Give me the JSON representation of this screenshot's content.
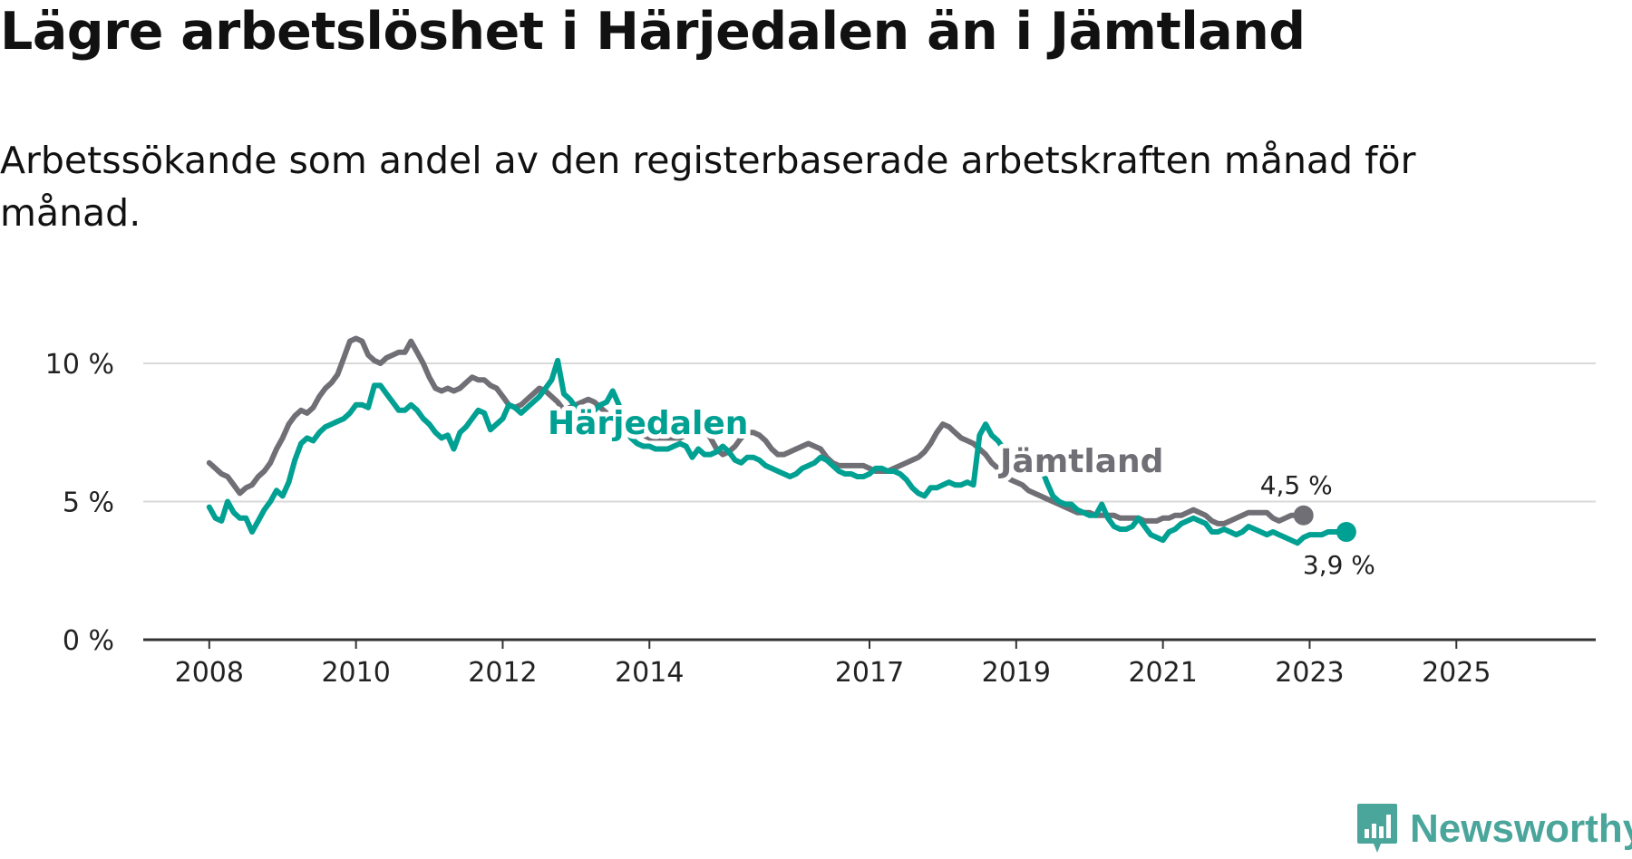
{
  "title": "Lägre arbetslöshet i Härjedalen än i Jämtland",
  "subtitle": "Arbetssökande som andel av den registerbaserade arbetskraften månad för månad.",
  "logo_text": "Newsworthy",
  "colors": {
    "harjedalen": "#00a093",
    "jamtland": "#716f76",
    "grid": "#d9d9d9",
    "axis": "#333333",
    "logo": "#4aa59b"
  },
  "chart_data": {
    "type": "line",
    "x_start": 2008.0,
    "x_step": 0.0833333,
    "xlim": [
      2007.1,
      2026.9
    ],
    "ylim": [
      0,
      10
    ],
    "y_ticks": [
      0,
      5,
      10
    ],
    "y_tick_labels": [
      "0 %",
      "5 %",
      "10 %"
    ],
    "x_ticks": [
      2008,
      2010,
      2012,
      2014,
      2017,
      2019,
      2021,
      2023,
      2025
    ],
    "x_tick_labels": [
      "2008",
      "2010",
      "2012",
      "2014",
      "2017",
      "2019",
      "2021",
      "2023",
      "2025"
    ],
    "series": [
      {
        "name": "Jämtland",
        "label": "Jämtland",
        "end_label": "4,5 %",
        "values": [
          6.4,
          6.2,
          6.0,
          5.9,
          5.6,
          5.3,
          5.5,
          5.6,
          5.9,
          6.1,
          6.4,
          6.9,
          7.3,
          7.8,
          8.1,
          8.3,
          8.2,
          8.4,
          8.8,
          9.1,
          9.3,
          9.6,
          10.2,
          10.8,
          10.9,
          10.8,
          10.3,
          10.1,
          10.0,
          10.2,
          10.3,
          10.4,
          10.4,
          10.8,
          10.4,
          10.0,
          9.5,
          9.1,
          9.0,
          9.1,
          9.0,
          9.1,
          9.3,
          9.5,
          9.4,
          9.4,
          9.2,
          9.1,
          8.8,
          8.5,
          8.4,
          8.5,
          8.7,
          8.9,
          9.1,
          9.0,
          8.8,
          8.6,
          8.3,
          8.4,
          8.5,
          8.6,
          8.7,
          8.6,
          8.4,
          8.2,
          8.0,
          7.8,
          7.6,
          7.5,
          7.4,
          7.4,
          7.3,
          7.3,
          7.3,
          7.3,
          7.3,
          7.3,
          7.4,
          7.6,
          7.7,
          7.6,
          7.3,
          6.9,
          6.7,
          6.8,
          7.0,
          7.3,
          7.5,
          7.5,
          7.4,
          7.2,
          6.9,
          6.7,
          6.7,
          6.8,
          6.9,
          7.0,
          7.1,
          7.0,
          6.9,
          6.6,
          6.4,
          6.3,
          6.3,
          6.3,
          6.3,
          6.3,
          6.2,
          6.1,
          6.1,
          6.1,
          6.2,
          6.3,
          6.4,
          6.5,
          6.6,
          6.8,
          7.1,
          7.5,
          7.8,
          7.7,
          7.5,
          7.3,
          7.2,
          7.1,
          6.9,
          6.7,
          6.4,
          6.2,
          6.0,
          5.8,
          5.7,
          5.6,
          5.4,
          5.3,
          5.2,
          5.1,
          5.0,
          4.9,
          4.8,
          4.7,
          4.6,
          4.6,
          4.6,
          4.5,
          4.5,
          4.5,
          4.5,
          4.4,
          4.4,
          4.4,
          4.4,
          4.3,
          4.3,
          4.3,
          4.4,
          4.4,
          4.5,
          4.5,
          4.6,
          4.7,
          4.6,
          4.5,
          4.3,
          4.2,
          4.2,
          4.3,
          4.4,
          4.5,
          4.6,
          4.6,
          4.6,
          4.6,
          4.4,
          4.3,
          4.4,
          4.5,
          4.5,
          4.5
        ]
      },
      {
        "name": "Härjedalen",
        "label": "Härjedalen",
        "end_label": "3,9 %",
        "values": [
          4.8,
          4.4,
          4.3,
          5.0,
          4.6,
          4.4,
          4.4,
          3.9,
          4.3,
          4.7,
          5.0,
          5.4,
          5.2,
          5.7,
          6.5,
          7.1,
          7.3,
          7.2,
          7.5,
          7.7,
          7.8,
          7.9,
          8.0,
          8.2,
          8.5,
          8.5,
          8.4,
          9.2,
          9.2,
          8.9,
          8.6,
          8.3,
          8.3,
          8.5,
          8.3,
          8.0,
          7.8,
          7.5,
          7.3,
          7.4,
          6.9,
          7.5,
          7.7,
          8.0,
          8.3,
          8.2,
          7.6,
          7.8,
          8.0,
          8.5,
          8.4,
          8.2,
          8.4,
          8.6,
          8.8,
          9.1,
          9.4,
          10.1,
          8.9,
          8.7,
          8.4,
          8.3,
          8.2,
          8.3,
          8.5,
          8.6,
          9.0,
          8.5,
          7.7,
          7.3,
          7.1,
          7.0,
          7.0,
          6.9,
          6.9,
          6.9,
          7.0,
          7.1,
          7.0,
          6.6,
          6.9,
          6.7,
          6.7,
          6.8,
          7.0,
          6.8,
          6.5,
          6.4,
          6.6,
          6.6,
          6.5,
          6.3,
          6.2,
          6.1,
          6.0,
          5.9,
          6.0,
          6.2,
          6.3,
          6.4,
          6.6,
          6.5,
          6.3,
          6.1,
          6.0,
          6.0,
          5.9,
          5.9,
          6.0,
          6.2,
          6.2,
          6.1,
          6.1,
          6.0,
          5.8,
          5.5,
          5.3,
          5.2,
          5.5,
          5.5,
          5.6,
          5.7,
          5.6,
          5.6,
          5.7,
          5.6,
          7.4,
          7.8,
          7.4,
          7.2,
          6.9,
          6.6,
          6.3,
          6.4,
          6.5,
          6.7,
          6.3,
          5.7,
          5.2,
          5.0,
          4.9,
          4.9,
          4.7,
          4.6,
          4.5,
          4.5,
          4.9,
          4.4,
          4.1,
          4.0,
          4.0,
          4.1,
          4.4,
          4.1,
          3.8,
          3.7,
          3.6,
          3.9,
          4.0,
          4.2,
          4.3,
          4.4,
          4.3,
          4.2,
          3.9,
          3.9,
          4.0,
          3.9,
          3.8,
          3.9,
          4.1,
          4.0,
          3.9,
          3.8,
          3.9,
          3.8,
          3.7,
          3.6,
          3.5,
          3.7,
          3.8,
          3.8,
          3.8,
          3.9,
          3.9,
          3.9,
          3.9
        ]
      }
    ]
  }
}
